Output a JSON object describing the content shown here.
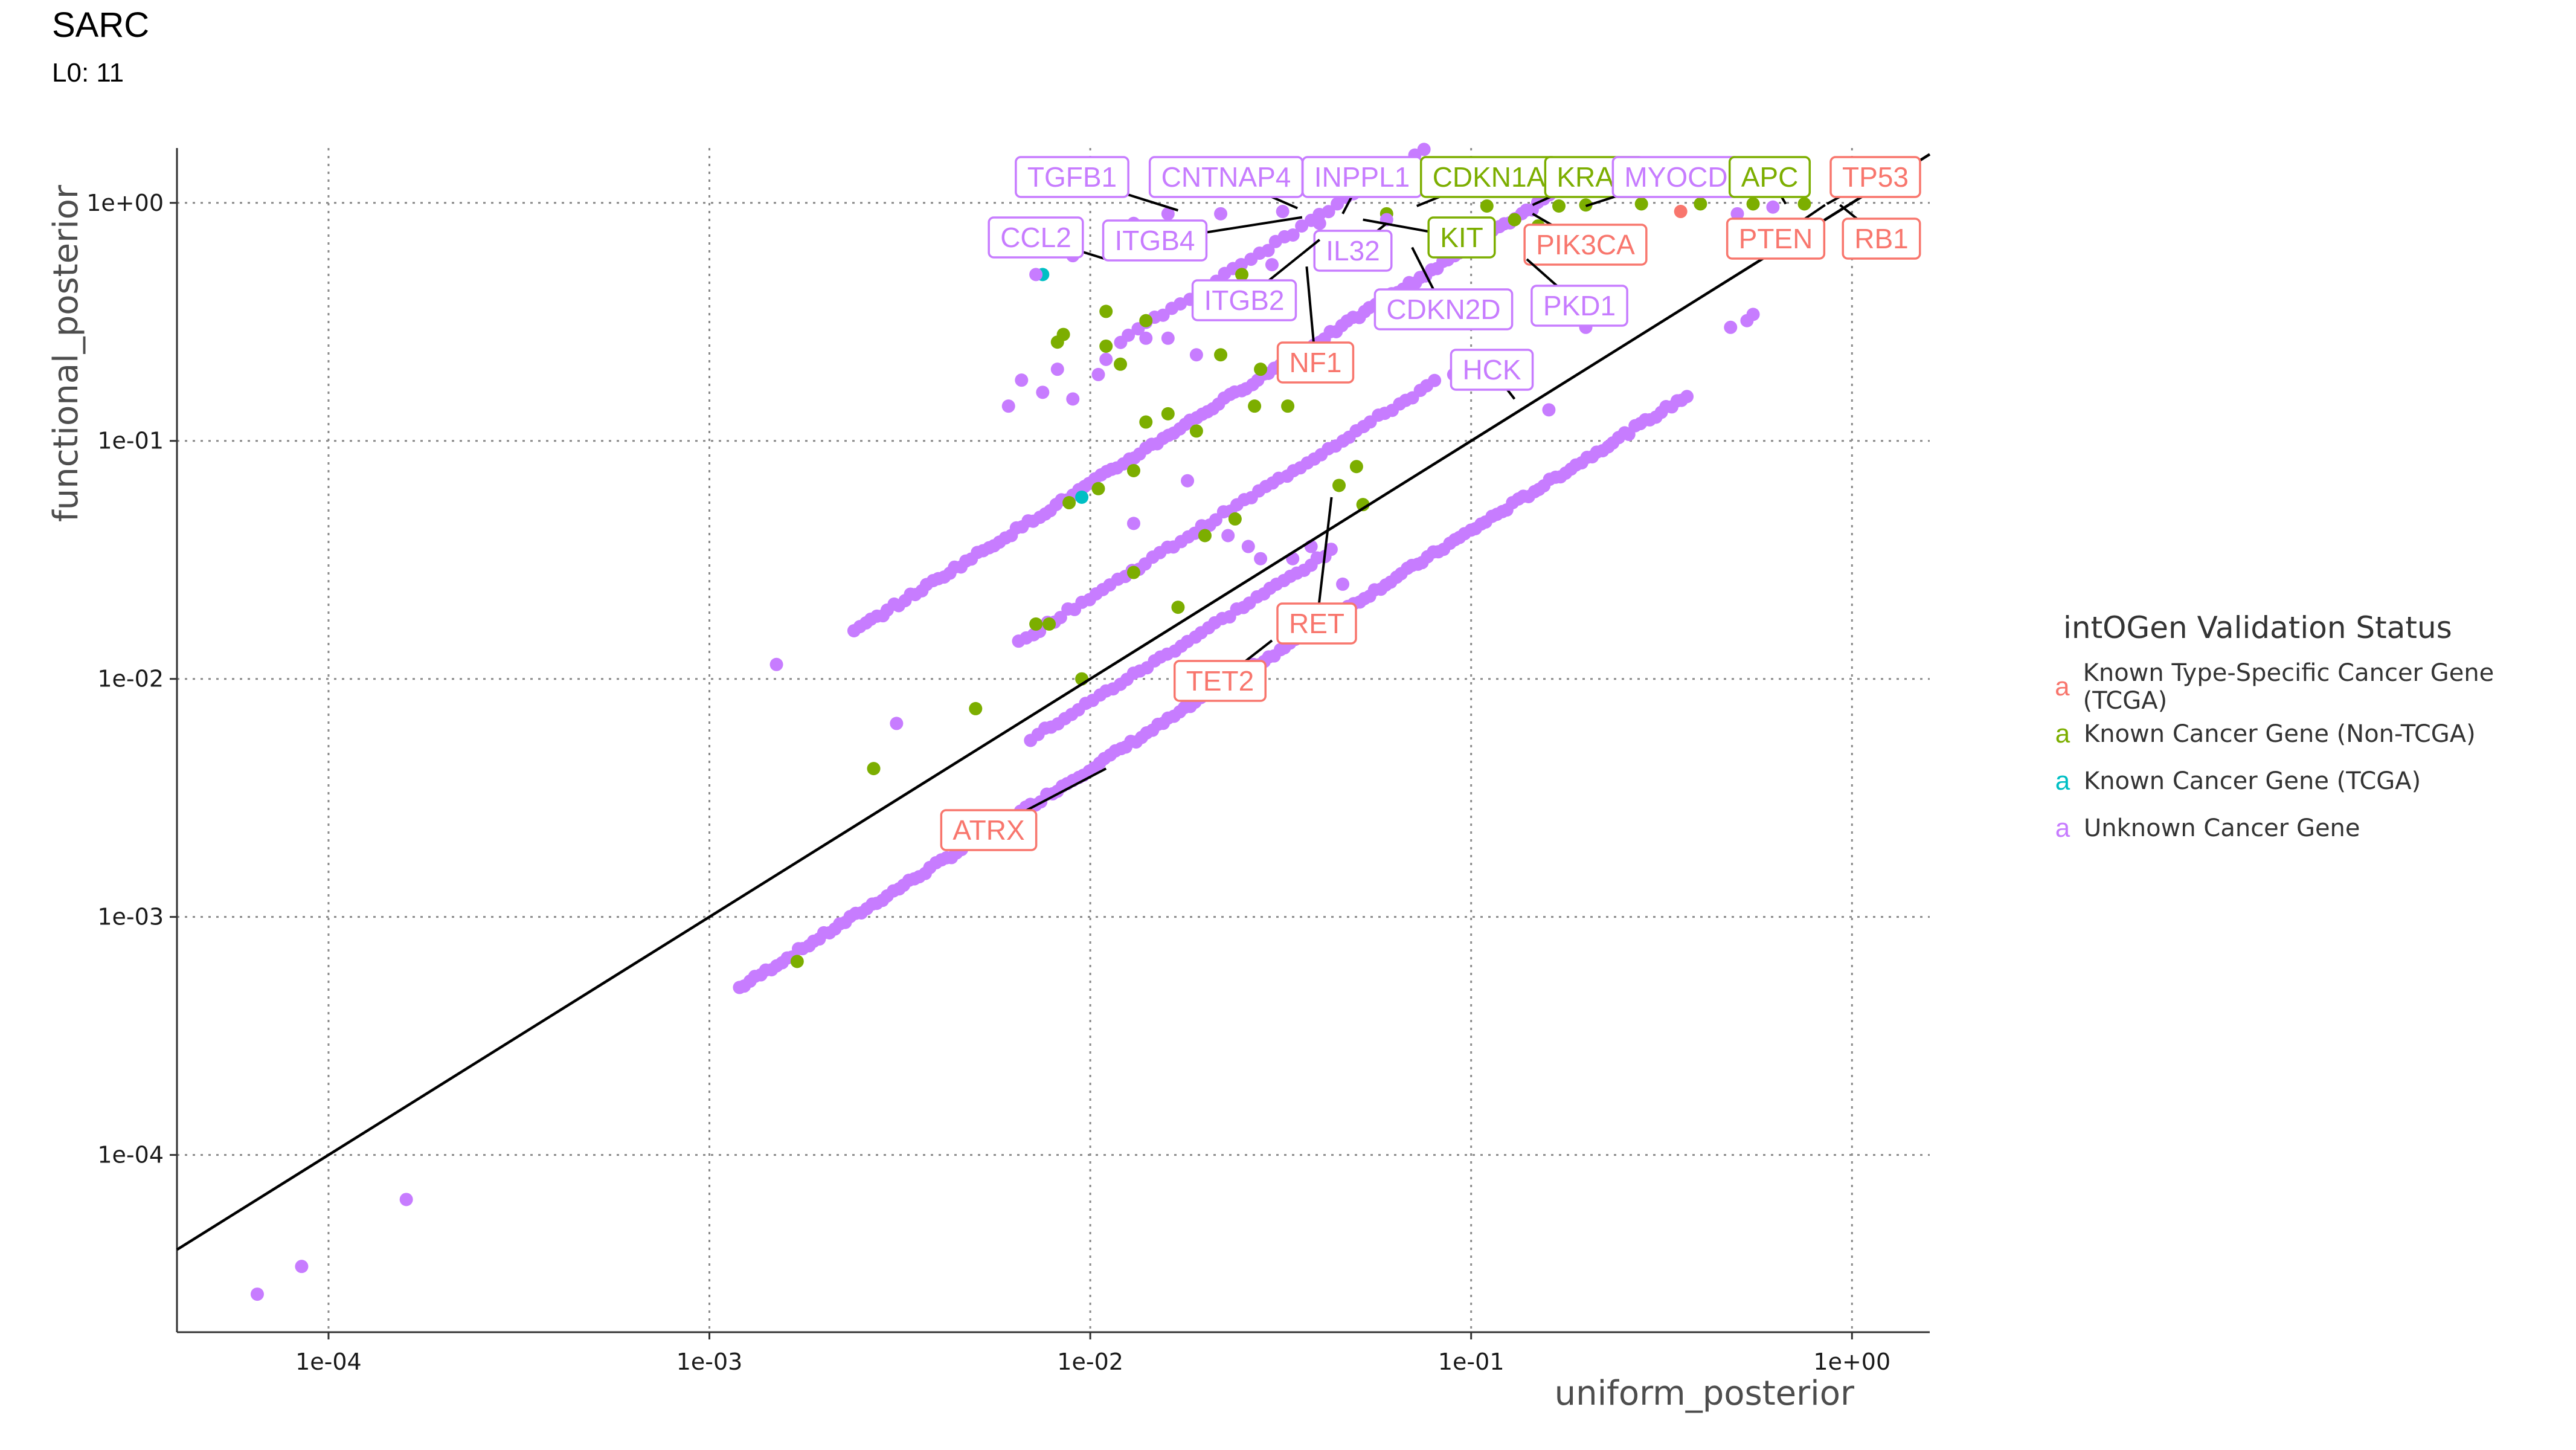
{
  "title": "SARC",
  "subtitle": "L0: 11",
  "colors": {
    "Known Type-Specific Cancer Gene (TCGA)": "#F8766D",
    "Known Cancer Gene (Non-TCGA)": "#7CAE00",
    "Known Cancer Gene (TCGA)": "#00BFC4",
    "Unknown Cancer Gene": "#C77CFF"
  },
  "chart_data": {
    "type": "scatter",
    "xlabel": "uniform_posterior",
    "ylabel": "functional_posterior",
    "x_scale": "log10",
    "y_scale": "log10",
    "xlim": [
      4e-05,
      1.6
    ],
    "ylim": [
      1.8e-05,
      1.7
    ],
    "x_ticks": [
      "1e-04",
      "1e-03",
      "1e-02",
      "1e-01",
      "1e+00"
    ],
    "y_ticks": [
      "1e-04",
      "1e-03",
      "1e-02",
      "1e-01",
      "1e+00"
    ],
    "grid": true,
    "reference_line": "y = x",
    "legend": {
      "title": "intOGen Validation Status",
      "position": "right",
      "key_glyph": "a",
      "entries": [
        "Known Type-Specific Cancer Gene (TCGA)",
        "Known Cancer Gene (Non-TCGA)",
        "Known Cancer Gene (TCGA)",
        "Unknown Cancer Gene"
      ]
    },
    "labeled_points": [
      {
        "label": "TGFB1",
        "x": 0.017,
        "y": 0.93,
        "status": "Unknown Cancer Gene"
      },
      {
        "label": "CNTNAP4",
        "x": 0.035,
        "y": 0.95,
        "status": "Unknown Cancer Gene"
      },
      {
        "label": "INPPL1",
        "x": 0.046,
        "y": 0.9,
        "status": "Unknown Cancer Gene"
      },
      {
        "label": "CDKN1A",
        "x": 0.072,
        "y": 0.97,
        "status": "Known Cancer Gene (Non-TCGA)"
      },
      {
        "label": "KRAS",
        "x": 0.145,
        "y": 0.98,
        "status": "Known Cancer Gene (Non-TCGA)"
      },
      {
        "label": "MYOCD",
        "x": 0.2,
        "y": 0.97,
        "status": "Unknown Cancer Gene"
      },
      {
        "label": "APC",
        "x": 0.67,
        "y": 0.99,
        "status": "Known Cancer Gene (Non-TCGA)"
      },
      {
        "label": "TP53",
        "x": 0.86,
        "y": 0.99,
        "status": "Known Type-Specific Cancer Gene (TCGA)"
      },
      {
        "label": "CCL2",
        "x": 0.011,
        "y": 0.58,
        "status": "Unknown Cancer Gene"
      },
      {
        "label": "ITGB4",
        "x": 0.036,
        "y": 0.87,
        "status": "Unknown Cancer Gene"
      },
      {
        "label": "IL32",
        "x": 0.06,
        "y": 0.82,
        "status": "Unknown Cancer Gene"
      },
      {
        "label": "KIT",
        "x": 0.052,
        "y": 0.85,
        "status": "Known Cancer Gene (Non-TCGA)"
      },
      {
        "label": "PIK3CA",
        "x": 0.145,
        "y": 0.9,
        "status": "Known Type-Specific Cancer Gene (TCGA)"
      },
      {
        "label": "PTEN",
        "x": 0.85,
        "y": 0.98,
        "status": "Known Type-Specific Cancer Gene (TCGA)"
      },
      {
        "label": "RB1",
        "x": 0.93,
        "y": 0.98,
        "status": "Known Type-Specific Cancer Gene (TCGA)"
      },
      {
        "label": "ITGB2",
        "x": 0.04,
        "y": 0.7,
        "status": "Unknown Cancer Gene"
      },
      {
        "label": "CDKN2D",
        "x": 0.07,
        "y": 0.65,
        "status": "Unknown Cancer Gene"
      },
      {
        "label": "PKD1",
        "x": 0.14,
        "y": 0.58,
        "status": "Unknown Cancer Gene"
      },
      {
        "label": "NF1",
        "x": 0.037,
        "y": 0.54,
        "status": "Known Type-Specific Cancer Gene (TCGA)"
      },
      {
        "label": "HCK",
        "x": 0.13,
        "y": 0.15,
        "status": "Unknown Cancer Gene"
      },
      {
        "label": "RET",
        "x": 0.043,
        "y": 0.058,
        "status": "Known Type-Specific Cancer Gene (TCGA)"
      },
      {
        "label": "TET2",
        "x": 0.03,
        "y": 0.0145,
        "status": "Known Type-Specific Cancer Gene (TCGA)"
      },
      {
        "label": "ATRX",
        "x": 0.011,
        "y": 0.0042,
        "status": "Known Type-Specific Cancer Gene (TCGA)"
      }
    ],
    "series": [
      {
        "name": "Known Type-Specific Cancer Gene (TCGA)",
        "points": [
          [
            0.355,
            0.92
          ]
        ]
      },
      {
        "name": "Known Cancer Gene (Non-TCGA)",
        "points": [
          [
            0.0017,
            0.00065
          ],
          [
            0.0027,
            0.0042
          ],
          [
            0.005,
            0.0075
          ],
          [
            0.0072,
            0.017
          ],
          [
            0.0082,
            0.26
          ],
          [
            0.0085,
            0.28
          ],
          [
            0.0088,
            0.055
          ],
          [
            0.0095,
            0.01
          ],
          [
            0.011,
            0.25
          ],
          [
            0.012,
            0.21
          ],
          [
            0.0078,
            0.017
          ],
          [
            0.0105,
            0.063
          ],
          [
            0.013,
            0.028
          ],
          [
            0.013,
            0.075
          ],
          [
            0.014,
            0.12
          ],
          [
            0.016,
            0.13
          ],
          [
            0.017,
            0.02
          ],
          [
            0.019,
            0.11
          ],
          [
            0.02,
            0.04
          ],
          [
            0.022,
            0.23
          ],
          [
            0.024,
            0.047
          ],
          [
            0.025,
            0.5
          ],
          [
            0.027,
            0.14
          ],
          [
            0.028,
            0.2
          ],
          [
            0.033,
            0.14
          ],
          [
            0.045,
            0.065
          ],
          [
            0.05,
            0.078
          ],
          [
            0.052,
            0.054
          ],
          [
            0.06,
            0.9
          ],
          [
            0.11,
            0.97
          ],
          [
            0.13,
            0.85
          ],
          [
            0.15,
            0.8
          ],
          [
            0.17,
            0.97
          ],
          [
            0.2,
            0.98
          ],
          [
            0.28,
            0.99
          ],
          [
            0.4,
            0.99
          ],
          [
            0.55,
            0.99
          ],
          [
            0.75,
            0.99
          ],
          [
            0.011,
            0.35
          ],
          [
            0.014,
            0.32
          ]
        ]
      },
      {
        "name": "Known Cancer Gene (TCGA)",
        "points": [
          [
            0.0075,
            0.5
          ],
          [
            0.0095,
            0.058
          ]
        ]
      },
      {
        "name": "Unknown Cancer Gene",
        "points": [
          [
            6.5e-05,
            2.6e-05
          ],
          [
            8.5e-05,
            3.4e-05
          ],
          [
            0.00016,
            6.5e-05
          ],
          [
            0.0015,
            0.0115
          ],
          [
            0.0031,
            0.0065
          ],
          [
            0.0061,
            0.14
          ],
          [
            0.0066,
            0.18
          ],
          [
            0.0075,
            0.16
          ],
          [
            0.0082,
            0.2
          ],
          [
            0.009,
            0.15
          ],
          [
            0.0105,
            0.19
          ],
          [
            0.011,
            0.22
          ],
          [
            0.013,
            0.045
          ],
          [
            0.014,
            0.27
          ],
          [
            0.016,
            0.27
          ],
          [
            0.018,
            0.068
          ],
          [
            0.019,
            0.23
          ],
          [
            0.023,
            0.04
          ],
          [
            0.026,
            0.036
          ],
          [
            0.028,
            0.032
          ],
          [
            0.03,
            0.55
          ],
          [
            0.034,
            0.032
          ],
          [
            0.038,
            0.036
          ],
          [
            0.04,
            0.82
          ],
          [
            0.046,
            0.025
          ],
          [
            0.06,
            0.85
          ],
          [
            0.09,
            0.19
          ],
          [
            0.16,
            0.135
          ],
          [
            0.2,
            0.3
          ],
          [
            0.48,
            0.3
          ],
          [
            0.53,
            0.32
          ],
          [
            0.55,
            0.34
          ],
          [
            0.5,
            0.9
          ],
          [
            0.62,
            0.96
          ],
          [
            0.0072,
            0.5
          ],
          [
            0.009,
            0.6
          ],
          [
            0.013,
            0.82
          ],
          [
            0.016,
            0.9
          ],
          [
            0.022,
            0.9
          ],
          [
            0.032,
            0.92
          ]
        ]
      }
    ],
    "dense_bands": [
      {
        "status": "Unknown Cancer Gene",
        "x_range": [
          0.0012,
          0.37
        ],
        "ratio_y_over_x": 0.42,
        "count": 180
      },
      {
        "status": "Unknown Cancer Gene",
        "x_range": [
          0.007,
          0.043
        ],
        "ratio_y_over_x": 0.8,
        "count": 45
      },
      {
        "status": "Unknown Cancer Gene",
        "x_range": [
          0.0065,
          0.08
        ],
        "ratio_y_over_x": 2.2,
        "count": 60
      },
      {
        "status": "Unknown Cancer Gene",
        "x_range": [
          0.0024,
          0.19
        ],
        "ratio_y_over_x": 6.6,
        "count": 130
      },
      {
        "status": "Unknown Cancer Gene",
        "x_range": [
          0.012,
          0.12
        ],
        "ratio_y_over_x": 22.0,
        "count": 45
      }
    ]
  }
}
